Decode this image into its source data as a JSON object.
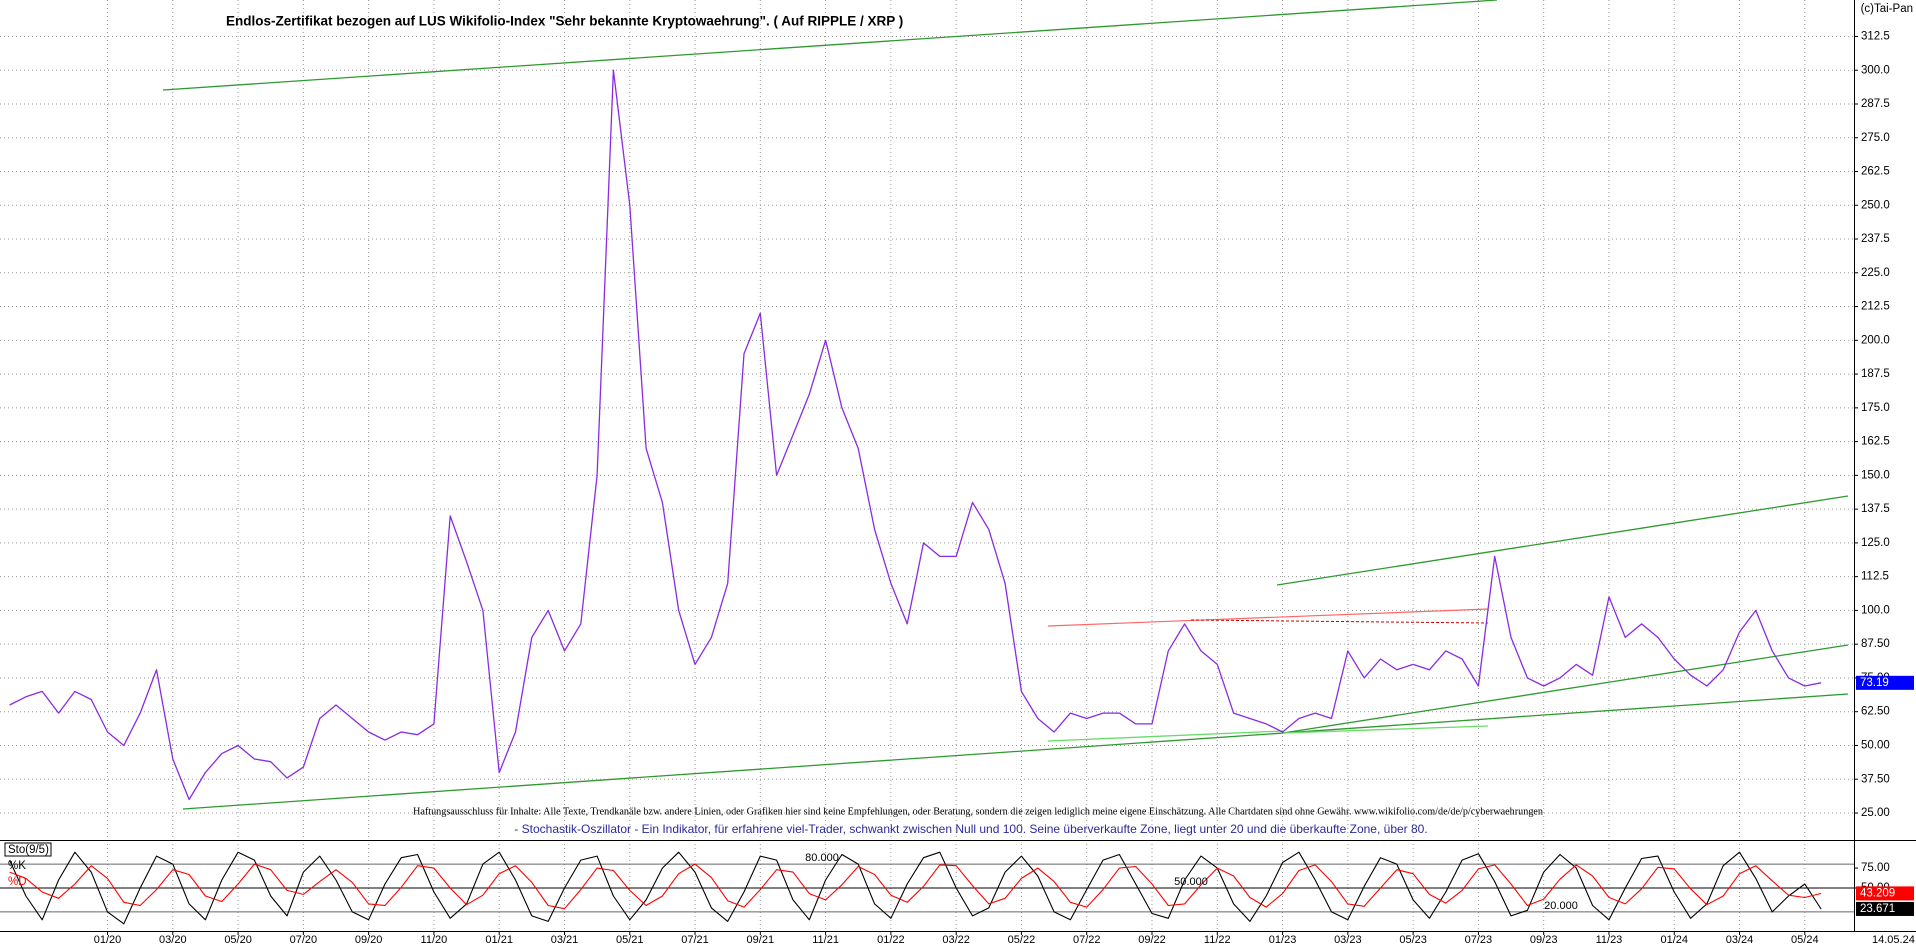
{
  "chart_data": [
    {
      "type": "line",
      "title": "Endlos-Zertifikat bezogen auf LUS Wikifolio-Index \"Sehr bekannte Kryptowaehrung\". ( Auf RIPPLE / XRP )",
      "copyright": "(c)Tai-Pan",
      "disclaimer": "Haftungsausschluss für Inhalte: Alle Texte, Trendkanäle bzw. andere Linien, oder Grafiken hier sind keine Empfehlungen, oder Beratung, sondern die zeigen lediglich meine eigene Einschätzung. Alle Chartdaten sind ohne Gewähr.  www.wikifolio.com/de/de/p/cyberwaehrungen",
      "last_date": "14.05.24",
      "categories": [
        null,
        null,
        null,
        null,
        null,
        null,
        "01/20",
        null,
        null,
        null,
        "03/20",
        null,
        null,
        null,
        "05/20",
        null,
        null,
        null,
        "07/20",
        null,
        null,
        null,
        "09/20",
        null,
        null,
        null,
        "11/20",
        null,
        null,
        null,
        "01/21",
        null,
        null,
        null,
        "03/21",
        null,
        null,
        null,
        "05/21",
        null,
        null,
        null,
        "07/21",
        null,
        null,
        null,
        "09/21",
        null,
        null,
        null,
        "11/21",
        null,
        null,
        null,
        "01/22",
        null,
        null,
        null,
        "03/22",
        null,
        null,
        null,
        "05/22",
        null,
        null,
        null,
        "07/22",
        null,
        null,
        null,
        "09/22",
        null,
        null,
        null,
        "11/22",
        null,
        null,
        null,
        "01/23",
        null,
        null,
        null,
        "03/23",
        null,
        null,
        null,
        "05/23",
        null,
        null,
        null,
        "07/23",
        null,
        null,
        null,
        "09/23",
        null,
        null,
        null,
        "11/23",
        null,
        null,
        null,
        "01/24",
        null,
        null,
        null,
        "03/24",
        null,
        null,
        null,
        "05/24",
        null
      ],
      "values": [
        65,
        68,
        70,
        62,
        70,
        67,
        55,
        50,
        62,
        78,
        45,
        30,
        40,
        47,
        50,
        45,
        44,
        38,
        42,
        60,
        65,
        60,
        55,
        52,
        55,
        54,
        58,
        135,
        118,
        100,
        40,
        55,
        90,
        100,
        85,
        95,
        150,
        300,
        250,
        160,
        140,
        100,
        80,
        90,
        110,
        195,
        210,
        150,
        165,
        180,
        200,
        175,
        160,
        130,
        110,
        95,
        125,
        120,
        120,
        140,
        130,
        110,
        70,
        60,
        55,
        62,
        60,
        62,
        62,
        58,
        58,
        85,
        95,
        85,
        80,
        62,
        60,
        58,
        55,
        60,
        62,
        60,
        85,
        75,
        82,
        78,
        80,
        78,
        85,
        82,
        72,
        120,
        90,
        75,
        72,
        75,
        80,
        76,
        105,
        90,
        95,
        90,
        82,
        76,
        72,
        78,
        92,
        100,
        85,
        75,
        72,
        73.19
      ],
      "color": "#8a2be2",
      "ylim": [
        15,
        326
      ],
      "yticks": [
        {
          "value": 25,
          "label": "25.00"
        },
        {
          "value": 37.5,
          "label": "37.50"
        },
        {
          "value": 50,
          "label": "50.00"
        },
        {
          "value": 62.5,
          "label": "62.50"
        },
        {
          "value": 75,
          "label": "75.00"
        },
        {
          "value": 87.5,
          "label": "87.50"
        },
        {
          "value": 100,
          "label": "100.0"
        },
        112.5,
        {
          "value": 125,
          "label": "125.0"
        },
        137.5,
        {
          "value": 150,
          "label": "150.0"
        },
        162.5,
        {
          "value": 175,
          "label": "175.0"
        },
        187.5,
        {
          "value": 200,
          "label": "200.0"
        },
        212.5,
        {
          "value": 225,
          "label": "225.0"
        },
        237.5,
        {
          "value": 250,
          "label": "250.0"
        },
        262.5,
        {
          "value": 275,
          "label": "275.0"
        },
        287.5,
        {
          "value": 300,
          "label": "300.0"
        },
        312.5
      ],
      "grid": true
    },
    {
      "type": "line",
      "title": "Sto(9/5)",
      "subtitle": "- Stochastik-Oszillator - Ein Indikator, für erfahrene viel-Trader, schwankt zwischen Null und 100. Seine überverkaufte Zone, liegt unter 20 und die überkaufte Zone, über 80.",
      "series": [
        {
          "name": "%K",
          "color": "#000000",
          "values": [
            85,
            40,
            10,
            60,
            95,
            70,
            20,
            5,
            50,
            90,
            80,
            30,
            10,
            60,
            95,
            85,
            40,
            15,
            70,
            90,
            60,
            20,
            10,
            55,
            88,
            92,
            45,
            12,
            30,
            80,
            95,
            60,
            15,
            8,
            50,
            85,
            90,
            40,
            10,
            35,
            75,
            95,
            70,
            25,
            8,
            45,
            90,
            85,
            35,
            10,
            60,
            92,
            80,
            30,
            12,
            55,
            88,
            95,
            50,
            15,
            25,
            70,
            90,
            65,
            20,
            10,
            48,
            85,
            92,
            55,
            18,
            12,
            60,
            90,
            75,
            30,
            8,
            40,
            82,
            95,
            60,
            20,
            10,
            52,
            88,
            80,
            35,
            12,
            45,
            85,
            93,
            58,
            15,
            22,
            70,
            92,
            75,
            28,
            10,
            50,
            87,
            90,
            45,
            12,
            30,
            78,
            95,
            62,
            20,
            40,
            55,
            23.671
          ]
        },
        {
          "name": "%D",
          "color": "#ff0000",
          "values": [
            70,
            62,
            45,
            37,
            55,
            78,
            62,
            32,
            28,
            48,
            73,
            67,
            40,
            33,
            55,
            80,
            73,
            47,
            42,
            58,
            73,
            57,
            30,
            28,
            51,
            78,
            75,
            50,
            29,
            41,
            68,
            78,
            57,
            28,
            24,
            48,
            75,
            72,
            47,
            28,
            40,
            68,
            80,
            63,
            34,
            26,
            48,
            73,
            70,
            43,
            35,
            54,
            77,
            67,
            41,
            32,
            52,
            79,
            78,
            53,
            30,
            37,
            62,
            75,
            58,
            32,
            26,
            48,
            75,
            77,
            55,
            28,
            30,
            54,
            75,
            65,
            38,
            26,
            43,
            72,
            79,
            58,
            30,
            27,
            50,
            73,
            68,
            42,
            31,
            47,
            74,
            79,
            55,
            28,
            36,
            61,
            79,
            65,
            38,
            30,
            49,
            76,
            74,
            49,
            29,
            40,
            68,
            78,
            59,
            41,
            38,
            43.209
          ]
        }
      ],
      "ylim": [
        -4,
        109
      ],
      "yticks": [
        {
          "value": 75,
          "label": "75.00"
        },
        {
          "value": 50,
          "label": "50.00"
        }
      ],
      "reference_lines": [
        {
          "value": 80,
          "label": "80.000"
        },
        {
          "value": 50,
          "label": "50.000"
        },
        {
          "value": 20,
          "label": "20.000"
        }
      ]
    }
  ]
}
